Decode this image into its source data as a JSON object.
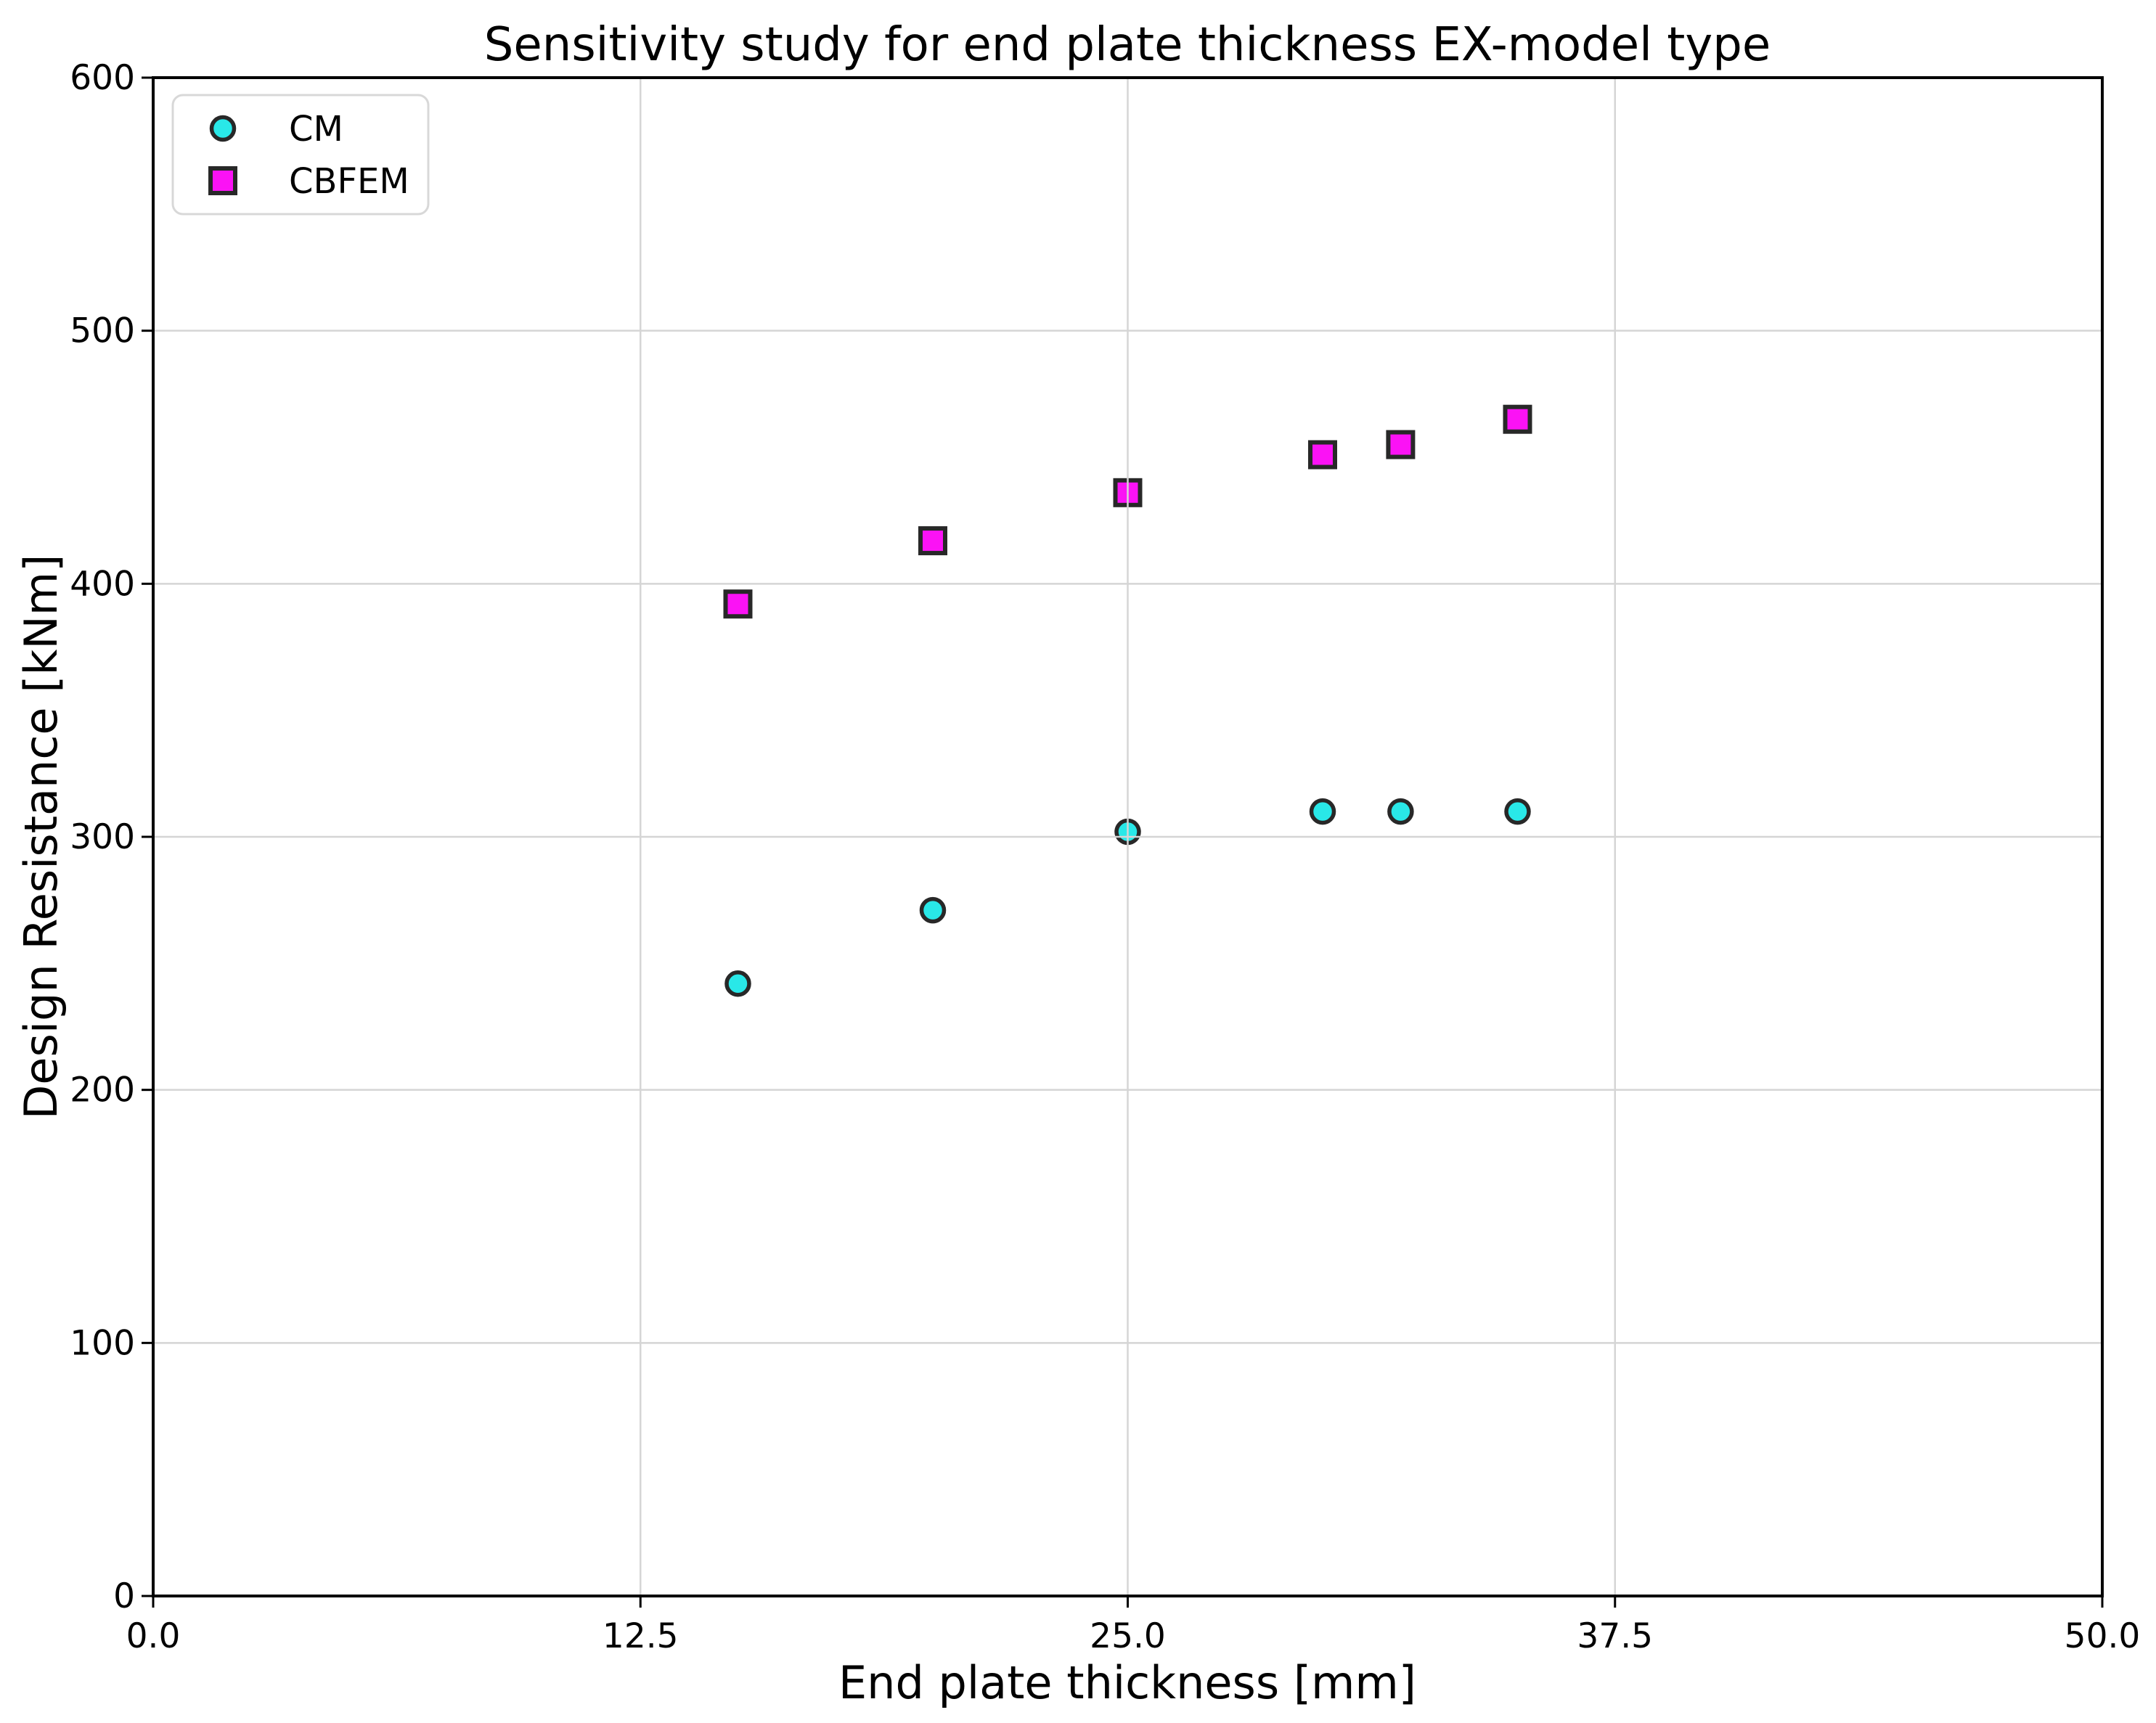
{
  "page": {
    "background": "#ffffff"
  },
  "chart_data": {
    "type": "scatter",
    "title": "Sensitivity study for end plate thickness EX-model type",
    "xlabel": "End plate thickness [mm]",
    "ylabel": "Design Resistance [kNm]",
    "xlim": [
      0,
      50
    ],
    "ylim": [
      0,
      600
    ],
    "x_ticks": [
      0,
      12.5,
      25,
      37.5,
      50
    ],
    "x_tick_labels": [
      "0.0",
      "12.5",
      "25.0",
      "37.5",
      "50.0"
    ],
    "y_ticks": [
      0,
      100,
      200,
      300,
      400,
      500,
      600
    ],
    "y_tick_labels": [
      "0",
      "100",
      "200",
      "300",
      "400",
      "500",
      "600"
    ],
    "grid": true,
    "grid_over_markers": true,
    "legend_position": "upper left",
    "series": [
      {
        "name": "CM",
        "marker": "circle",
        "fill": "#29E8E8",
        "edge": "#282828",
        "points": [
          [
            15,
            242
          ],
          [
            20,
            271
          ],
          [
            25,
            302
          ],
          [
            30,
            310
          ],
          [
            32,
            310
          ],
          [
            35,
            310
          ]
        ]
      },
      {
        "name": "CBFEM",
        "marker": "square",
        "fill": "#FB12F5",
        "edge": "#282828",
        "points": [
          [
            15,
            392
          ],
          [
            20,
            417
          ],
          [
            25,
            436
          ],
          [
            30,
            451
          ],
          [
            32,
            455
          ],
          [
            35,
            465
          ]
        ]
      }
    ],
    "colors": {
      "grid": "#d5d5d5",
      "axis": "#000000",
      "legend_border": "#d8d8d8",
      "legend_bg": "#ffffff"
    }
  }
}
